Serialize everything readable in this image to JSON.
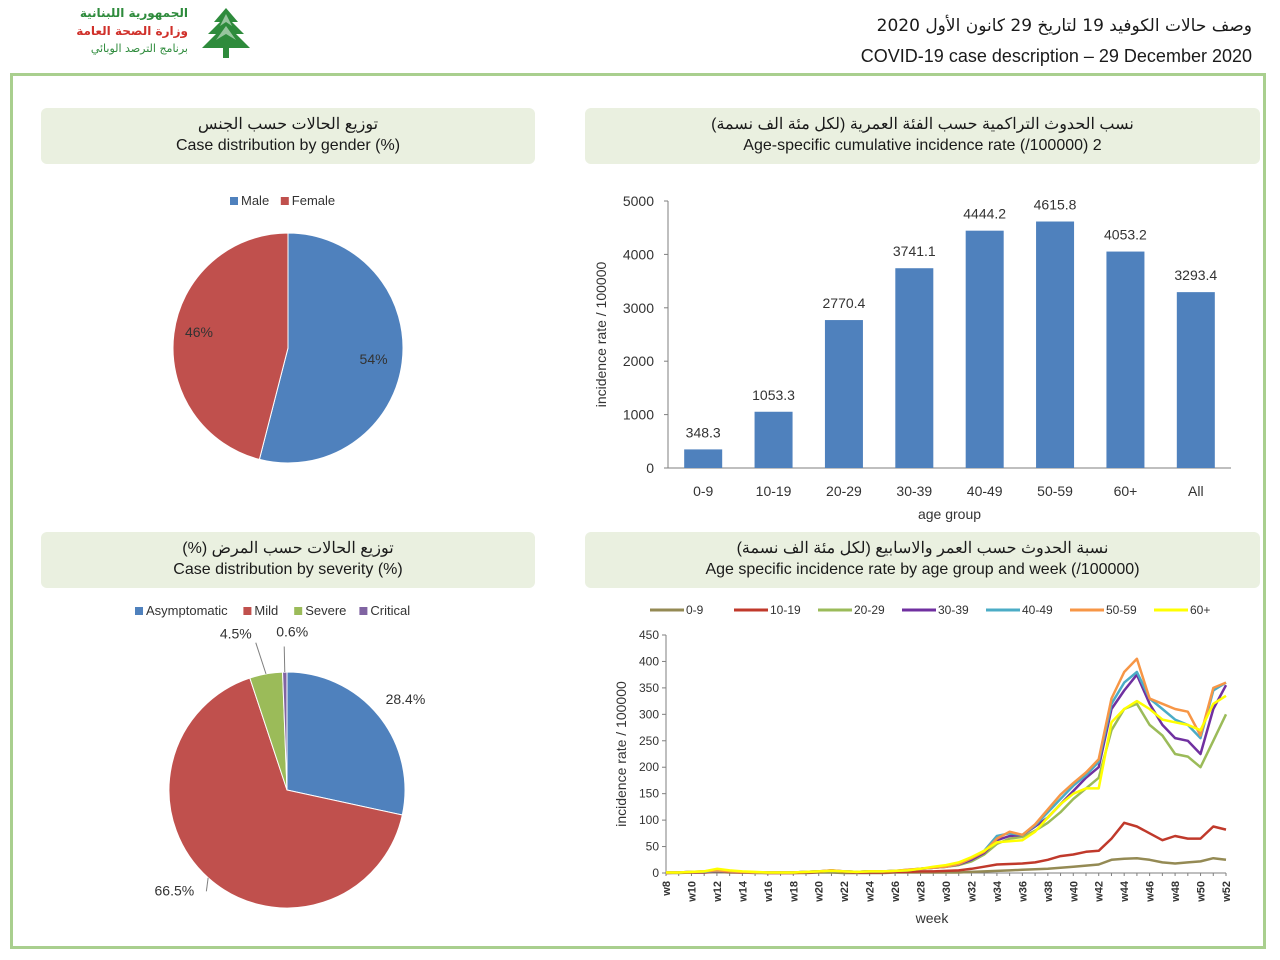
{
  "header": {
    "logo_lines": [
      "الجمهورية اللبنانية",
      "وزارة الصحة العامة",
      "برنامج الترصد الوبائي"
    ],
    "title_ar": "وصف حالات الكوفيد 19 لتاريخ 29 كانون الأول 2020",
    "title_en": "COVID-19 case description – 29 December 2020"
  },
  "colors": {
    "blue": "#4f81bd",
    "red": "#c0504d",
    "green": "#9bbb59",
    "purple": "#8064a2",
    "frame": "#a9cf8e",
    "banner": "#eaf0e0"
  },
  "panels": {
    "gender": {
      "title_ar": "توزيع الحالات حسب الجنس",
      "title_en": "Case distribution by gender (%)"
    },
    "age_rate": {
      "title_ar": "نسب الحدوث التراكمية حسب الفئة العمرية (لكل مئة الف نسمة)",
      "title_en": "Age-specific cumulative incidence rate (/100000) 2"
    },
    "severity": {
      "title_ar": "توزيع الحالات حسب المرض (%)",
      "title_en": "Case distribution by severity (%)"
    },
    "weekly": {
      "title_ar": "نسبة الحدوث حسب العمر والاسابيع (لكل مئة الف نسمة)",
      "title_en": "Age specific incidence rate by age group and week (/100000)"
    }
  },
  "chart_data": [
    {
      "type": "pie",
      "title": "Case distribution by gender (%)",
      "legend": "top",
      "categories": [
        "Male",
        "Female"
      ],
      "values": [
        54,
        46
      ],
      "labels": [
        "54%",
        "46%"
      ]
    },
    {
      "type": "bar",
      "title": "Age-specific cumulative incidence rate (/100000) 2",
      "categories": [
        "0-9",
        "10-19",
        "20-29",
        "30-39",
        "40-49",
        "50-59",
        "60+",
        "All"
      ],
      "values": [
        348.3,
        1053.3,
        2770.4,
        3741.1,
        4444.2,
        4615.8,
        4053.2,
        3293.4
      ],
      "value_labels": [
        "348.3",
        "1053.3",
        "2770.4",
        "3741.1",
        "4444.2",
        "4615.8",
        "4053.2",
        "3293.4"
      ],
      "xlabel": "age group",
      "ylabel": "incidence rate / 100000",
      "ylim": [
        0,
        5000
      ],
      "yticks": [
        "0",
        "1000",
        "2000",
        "3000",
        "4000",
        "5000"
      ],
      "grid": false
    },
    {
      "type": "pie",
      "title": "Case distribution by severity (%)",
      "legend": "top",
      "categories": [
        "Asymptomatic",
        "Mild",
        "Severe",
        "Critical"
      ],
      "values": [
        28.4,
        66.5,
        4.5,
        0.6
      ],
      "labels": [
        "28.4%",
        "66.5%",
        "4.5%",
        "0.6%"
      ]
    },
    {
      "type": "line",
      "title": "Age specific incidence rate by age group and week (/100000)",
      "xlabel": "week",
      "ylabel": "incidence rate / 100000",
      "ylim": [
        0,
        450
      ],
      "yticks": [
        "0",
        "50",
        "100",
        "150",
        "200",
        "250",
        "300",
        "350",
        "400",
        "450"
      ],
      "legend": "top",
      "x": [
        "w8",
        "w9",
        "w10",
        "w11",
        "w12",
        "w13",
        "w14",
        "w15",
        "w16",
        "w17",
        "w18",
        "w19",
        "w20",
        "w21",
        "w22",
        "w23",
        "w24",
        "w25",
        "w26",
        "w27",
        "w28",
        "w29",
        "w30",
        "w31",
        "w32",
        "w33",
        "w34",
        "w35",
        "w36",
        "w37",
        "w38",
        "w39",
        "w40",
        "w41",
        "w42",
        "w43",
        "w44",
        "w45",
        "w46",
        "w47",
        "w48",
        "w49",
        "w50",
        "w51",
        "w52"
      ],
      "xtick_labels": [
        "w8",
        "w10",
        "w12",
        "w14",
        "w16",
        "w18",
        "w20",
        "w22",
        "w24",
        "w26",
        "w28",
        "w30",
        "w32",
        "w34",
        "w36",
        "w38",
        "w40",
        "w42",
        "w44",
        "w46",
        "w48",
        "w50",
        "w52"
      ],
      "series": [
        {
          "name": "0-9",
          "color": "#948a54",
          "values": [
            0,
            0,
            1,
            1,
            2,
            1,
            1,
            0,
            0,
            0,
            0,
            0,
            1,
            1,
            0,
            0,
            0,
            0,
            1,
            1,
            1,
            1,
            1,
            1,
            2,
            3,
            4,
            5,
            6,
            7,
            8,
            10,
            12,
            14,
            16,
            25,
            27,
            28,
            25,
            20,
            18,
            20,
            22,
            28,
            25
          ]
        },
        {
          "name": "10-19",
          "color": "#c0392b",
          "values": [
            0,
            1,
            1,
            1,
            3,
            2,
            1,
            1,
            0,
            0,
            0,
            1,
            2,
            5,
            2,
            1,
            1,
            1,
            2,
            2,
            3,
            3,
            4,
            5,
            8,
            12,
            16,
            17,
            18,
            20,
            25,
            32,
            35,
            40,
            42,
            65,
            95,
            88,
            75,
            62,
            70,
            65,
            65,
            88,
            82
          ]
        },
        {
          "name": "20-29",
          "color": "#9bbb59",
          "values": [
            1,
            1,
            2,
            3,
            5,
            3,
            2,
            1,
            1,
            1,
            1,
            2,
            3,
            5,
            3,
            2,
            3,
            3,
            4,
            6,
            8,
            10,
            12,
            15,
            22,
            35,
            55,
            65,
            68,
            80,
            95,
            115,
            140,
            160,
            180,
            270,
            310,
            320,
            280,
            260,
            225,
            220,
            200,
            250,
            300
          ]
        },
        {
          "name": "30-39",
          "color": "#7030a0",
          "values": [
            1,
            1,
            2,
            2,
            4,
            3,
            2,
            1,
            1,
            1,
            1,
            2,
            3,
            4,
            3,
            2,
            3,
            3,
            4,
            5,
            8,
            10,
            12,
            16,
            25,
            38,
            62,
            70,
            72,
            88,
            105,
            130,
            155,
            180,
            200,
            310,
            345,
            375,
            320,
            280,
            255,
            250,
            225,
            310,
            355
          ]
        },
        {
          "name": "40-49",
          "color": "#4bacc6",
          "values": [
            1,
            1,
            2,
            2,
            4,
            3,
            2,
            1,
            1,
            1,
            1,
            2,
            3,
            4,
            3,
            2,
            3,
            3,
            4,
            5,
            8,
            10,
            12,
            17,
            28,
            42,
            70,
            75,
            72,
            90,
            115,
            140,
            165,
            185,
            210,
            320,
            360,
            380,
            330,
            310,
            290,
            280,
            255,
            345,
            360
          ]
        },
        {
          "name": "50-59",
          "color": "#f79646",
          "values": [
            1,
            1,
            2,
            3,
            5,
            3,
            2,
            1,
            1,
            1,
            1,
            2,
            3,
            5,
            3,
            2,
            3,
            3,
            4,
            6,
            8,
            10,
            12,
            17,
            28,
            40,
            65,
            78,
            72,
            92,
            120,
            148,
            170,
            190,
            215,
            330,
            380,
            405,
            330,
            320,
            310,
            305,
            260,
            350,
            360
          ]
        },
        {
          "name": "60+",
          "color": "#ffff00",
          "values": [
            1,
            1,
            2,
            3,
            8,
            5,
            3,
            2,
            1,
            1,
            1,
            2,
            3,
            4,
            3,
            2,
            3,
            3,
            4,
            5,
            8,
            12,
            15,
            20,
            30,
            42,
            58,
            60,
            62,
            78,
            105,
            130,
            150,
            160,
            160,
            285,
            310,
            325,
            310,
            290,
            285,
            280,
            270,
            320,
            335
          ]
        }
      ]
    }
  ]
}
